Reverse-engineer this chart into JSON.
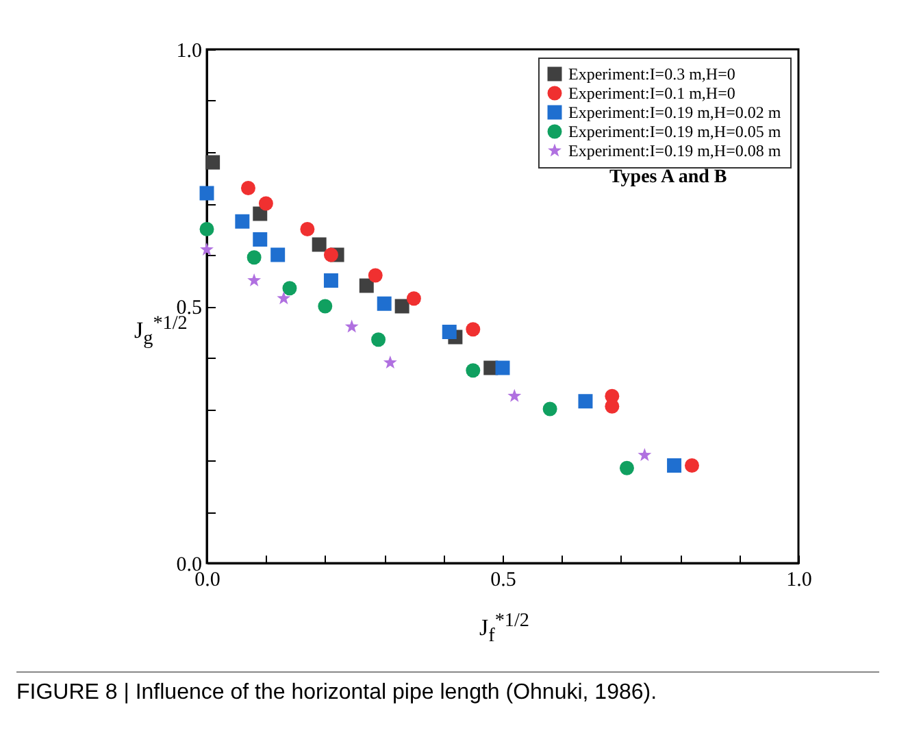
{
  "chart_data": {
    "type": "scatter",
    "xlabel": "J$_{f}$$^{*1/2}$",
    "ylabel": "J$_{g}$$^{*1/2}$",
    "annotations": [
      "Types A and B",
      "FIGURE 8 | Influence of the horizontal pipe length (Ohnuki, 1986)."
    ],
    "xlim": [
      0,
      1
    ],
    "ylim": [
      0,
      1
    ],
    "xticks": [
      {
        "value": 0,
        "label": "0.0"
      },
      {
        "value": 0.1,
        "label": null
      },
      {
        "value": 0.2,
        "label": null
      },
      {
        "value": 0.3,
        "label": null
      },
      {
        "value": 0.4,
        "label": null
      },
      {
        "value": 0.5,
        "label": "0.5"
      },
      {
        "value": 0.6,
        "label": null
      },
      {
        "value": 0.7,
        "label": null
      },
      {
        "value": 0.8,
        "label": null
      },
      {
        "value": 0.9,
        "label": null
      },
      {
        "value": 1,
        "label": "1.0"
      }
    ],
    "yticks": [
      {
        "value": 0,
        "label": "0.0"
      },
      {
        "value": 0.1,
        "label": null
      },
      {
        "value": 0.2,
        "label": null
      },
      {
        "value": 0.3,
        "label": null
      },
      {
        "value": 0.4,
        "label": null
      },
      {
        "value": 0.5,
        "label": "0.5"
      },
      {
        "value": 0.6,
        "label": null
      },
      {
        "value": 0.7,
        "label": null
      },
      {
        "value": 0.8,
        "label": null
      },
      {
        "value": 0.9,
        "label": null
      },
      {
        "value": 1,
        "label": "1.0"
      }
    ],
    "legend": "top right",
    "grid": false,
    "series": [
      {
        "name": "Experiment:I=0.3 m,H=0",
        "color": "#404040",
        "marker": "square",
        "x": [
          0.01,
          0.09,
          0.19,
          0.22,
          0.27,
          0.33,
          0.42,
          0.48
        ],
        "values": [
          0.78,
          0.68,
          0.62,
          0.6,
          0.54,
          0.5,
          0.44,
          0.38
        ]
      },
      {
        "name": "Experiment:I=0.1 m,H=0",
        "color": "#f03030",
        "marker": "circle",
        "x": [
          0.07,
          0.1,
          0.17,
          0.21,
          0.285,
          0.35,
          0.45,
          0.685,
          0.685,
          0.82
        ],
        "values": [
          0.73,
          0.7,
          0.65,
          0.6,
          0.56,
          0.515,
          0.455,
          0.325,
          0.305,
          0.19
        ]
      },
      {
        "name": "Experiment:I=0.19 m,H=0.02 m",
        "color": "#1f6fd0",
        "marker": "square",
        "x": [
          0.0,
          0.06,
          0.09,
          0.12,
          0.21,
          0.3,
          0.41,
          0.5,
          0.64,
          0.79
        ],
        "values": [
          0.72,
          0.665,
          0.63,
          0.6,
          0.55,
          0.505,
          0.45,
          0.38,
          0.315,
          0.19
        ]
      },
      {
        "name": "Experiment:I=0.19 m,H=0.05 m",
        "color": "#10a060",
        "marker": "circle",
        "x": [
          0.0,
          0.08,
          0.14,
          0.2,
          0.29,
          0.45,
          0.58,
          0.71
        ],
        "values": [
          0.65,
          0.595,
          0.535,
          0.5,
          0.435,
          0.375,
          0.3,
          0.185
        ]
      },
      {
        "name": "Experiment:I=0.19 m,H=0.08 m",
        "color": "#b070e0",
        "marker": "star",
        "x": [
          0.0,
          0.08,
          0.13,
          0.245,
          0.31,
          0.52,
          0.74
        ],
        "values": [
          0.61,
          0.55,
          0.515,
          0.46,
          0.39,
          0.325,
          0.21
        ]
      }
    ]
  }
}
